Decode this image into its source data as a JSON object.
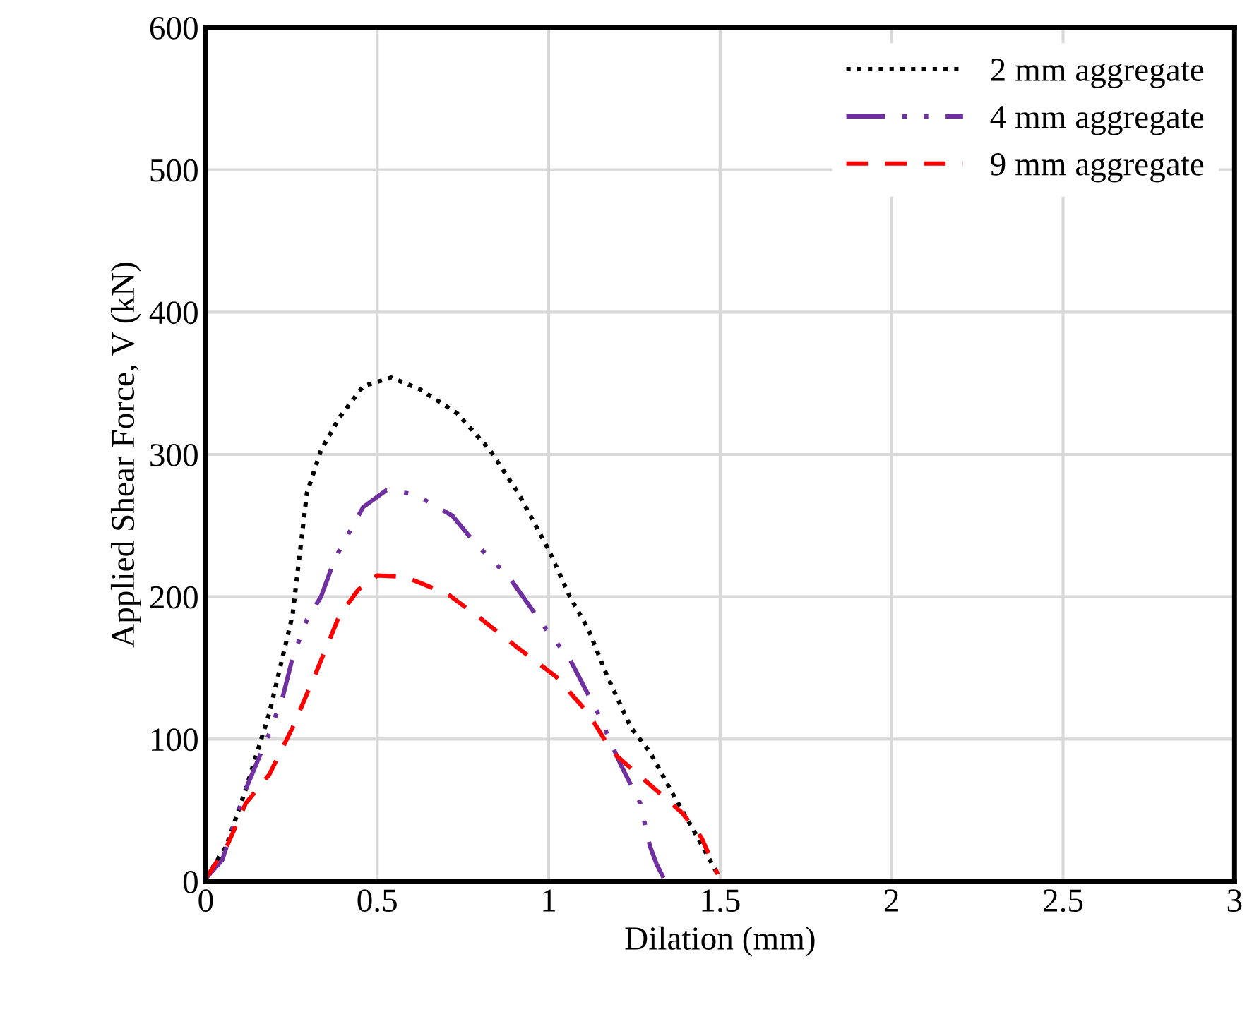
{
  "chart_data": {
    "type": "line",
    "xlabel": "Dilation (mm)",
    "ylabel": "Applied Shear Force, V (kN)",
    "xlim": [
      0,
      3
    ],
    "xticks": [
      0,
      0.5,
      1,
      1.5,
      2,
      2.5,
      3
    ],
    "ylim": [
      0,
      600
    ],
    "yticks": [
      0,
      100,
      200,
      300,
      400,
      500,
      600
    ],
    "grid": true,
    "legend": "top right",
    "series": [
      {
        "name": "2 mm aggregate",
        "color": "#000000",
        "line_style": "dotted",
        "x": [
          0,
          0.06,
          0.117,
          0.185,
          0.253,
          0.295,
          0.336,
          0.39,
          0.459,
          0.541,
          0.623,
          0.733,
          0.829,
          0.911,
          1.0,
          1.062,
          1.116,
          1.171,
          1.24,
          1.295,
          1.363,
          1.418,
          1.493
        ],
        "values": [
          2,
          25,
          65,
          118,
          187,
          273,
          303,
          326,
          348,
          354,
          346,
          329,
          303,
          273,
          233,
          200,
          177,
          144,
          108,
          91,
          61,
          38,
          5
        ]
      },
      {
        "name": "4 mm aggregate",
        "color": "#7030a0",
        "line_style": "dashdotdot",
        "x": [
          0,
          0.048,
          0.117,
          0.185,
          0.226,
          0.253,
          0.295,
          0.336,
          0.377,
          0.459,
          0.527,
          0.61,
          0.719,
          0.788,
          0.884,
          0.993,
          1.062,
          1.144,
          1.212,
          1.267,
          1.295,
          1.315,
          1.336
        ],
        "values": [
          2,
          15,
          65,
          104,
          131,
          157,
          184,
          200,
          227,
          263,
          275,
          272,
          257,
          237,
          214,
          177,
          156,
          118,
          81,
          55,
          25,
          12,
          2
        ]
      },
      {
        "name": "9 mm aggregate",
        "color": "#ff0000",
        "line_style": "dashed",
        "x": [
          0,
          0.062,
          0.117,
          0.185,
          0.253,
          0.322,
          0.39,
          0.445,
          0.5,
          0.582,
          0.705,
          0.8,
          0.911,
          1.021,
          1.116,
          1.185,
          1.295,
          1.39,
          1.445,
          1.493
        ],
        "values": [
          2,
          25,
          55,
          75,
          108,
          147,
          187,
          205,
          215,
          214,
          202,
          185,
          164,
          144,
          118,
          91,
          68,
          48,
          31,
          5
        ]
      }
    ]
  }
}
